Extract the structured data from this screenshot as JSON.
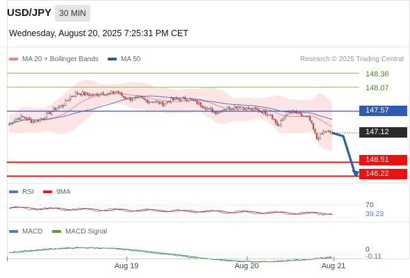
{
  "header": {
    "symbol": "USD/JPY",
    "timeframe": "30 MIN",
    "datetime": "Wednesday, August 20, 2025 7:25:31 PM CET"
  },
  "legend": {
    "ma20_label": "MA 20 + Bollinger Bands",
    "ma50_label": "MA 50",
    "rsi_label": "RSI",
    "rsi_ma_label": "9MA",
    "macd_label": "MACD",
    "macd_signal_label": "MACD Signal"
  },
  "credit": "Research © 2025 Trading Central",
  "colors": {
    "ma20": "#f08080",
    "bands_fill": "#fde0e0",
    "ma50": "#3b68c4",
    "pivot_line": "#2f5bb5",
    "resistance": "#7bb348",
    "support": "#ee1111",
    "arrow": "#2f5ea8",
    "candle": "#d64040",
    "rsi": "#5577d0",
    "rsi_ma": "#cc2222",
    "macd": "#5577d0",
    "macd_signal": "#55a030"
  },
  "levels": {
    "r2": "148.36",
    "r1": "148.07",
    "pivot": "147.57",
    "last": "147.12",
    "s1": "146.51",
    "s2": "146.22"
  },
  "rsi_panel": {
    "level": "70",
    "value": "39.23"
  },
  "macd_panel": {
    "zero": "0",
    "value": "-0.11"
  },
  "x_axis": [
    "Aug 19",
    "Aug 20",
    "Aug 21"
  ],
  "chart_data": {
    "type": "candlestick",
    "symbol": "USD/JPY",
    "timeframe": "30 MIN",
    "price_levels": {
      "resistance_2": 148.36,
      "resistance_1": 148.07,
      "pivot": 147.57,
      "last": 147.12,
      "support_1": 146.51,
      "support_2": 146.22
    },
    "x_tick_labels": [
      "Aug 19",
      "Aug 20",
      "Aug 21"
    ],
    "close_path": [
      147.3,
      147.42,
      147.45,
      147.35,
      147.4,
      147.5,
      147.62,
      147.7,
      147.88,
      147.95,
      147.92,
      147.9,
      147.95,
      147.92,
      147.98,
      147.85,
      147.82,
      147.84,
      147.78,
      147.77,
      147.72,
      147.8,
      147.82,
      147.83,
      147.78,
      147.7,
      147.6,
      147.55,
      147.62,
      147.65,
      147.67,
      147.62,
      147.6,
      147.56,
      147.5,
      147.25,
      147.52,
      147.55,
      147.48,
      147.42,
      147.0,
      147.15,
      147.12
    ],
    "forecast_path": [
      147.12,
      147.05,
      146.22
    ],
    "rsi": {
      "overbought_level": 70,
      "last": 39.23
    },
    "macd": {
      "zero_level": 0,
      "last": -0.11
    }
  }
}
